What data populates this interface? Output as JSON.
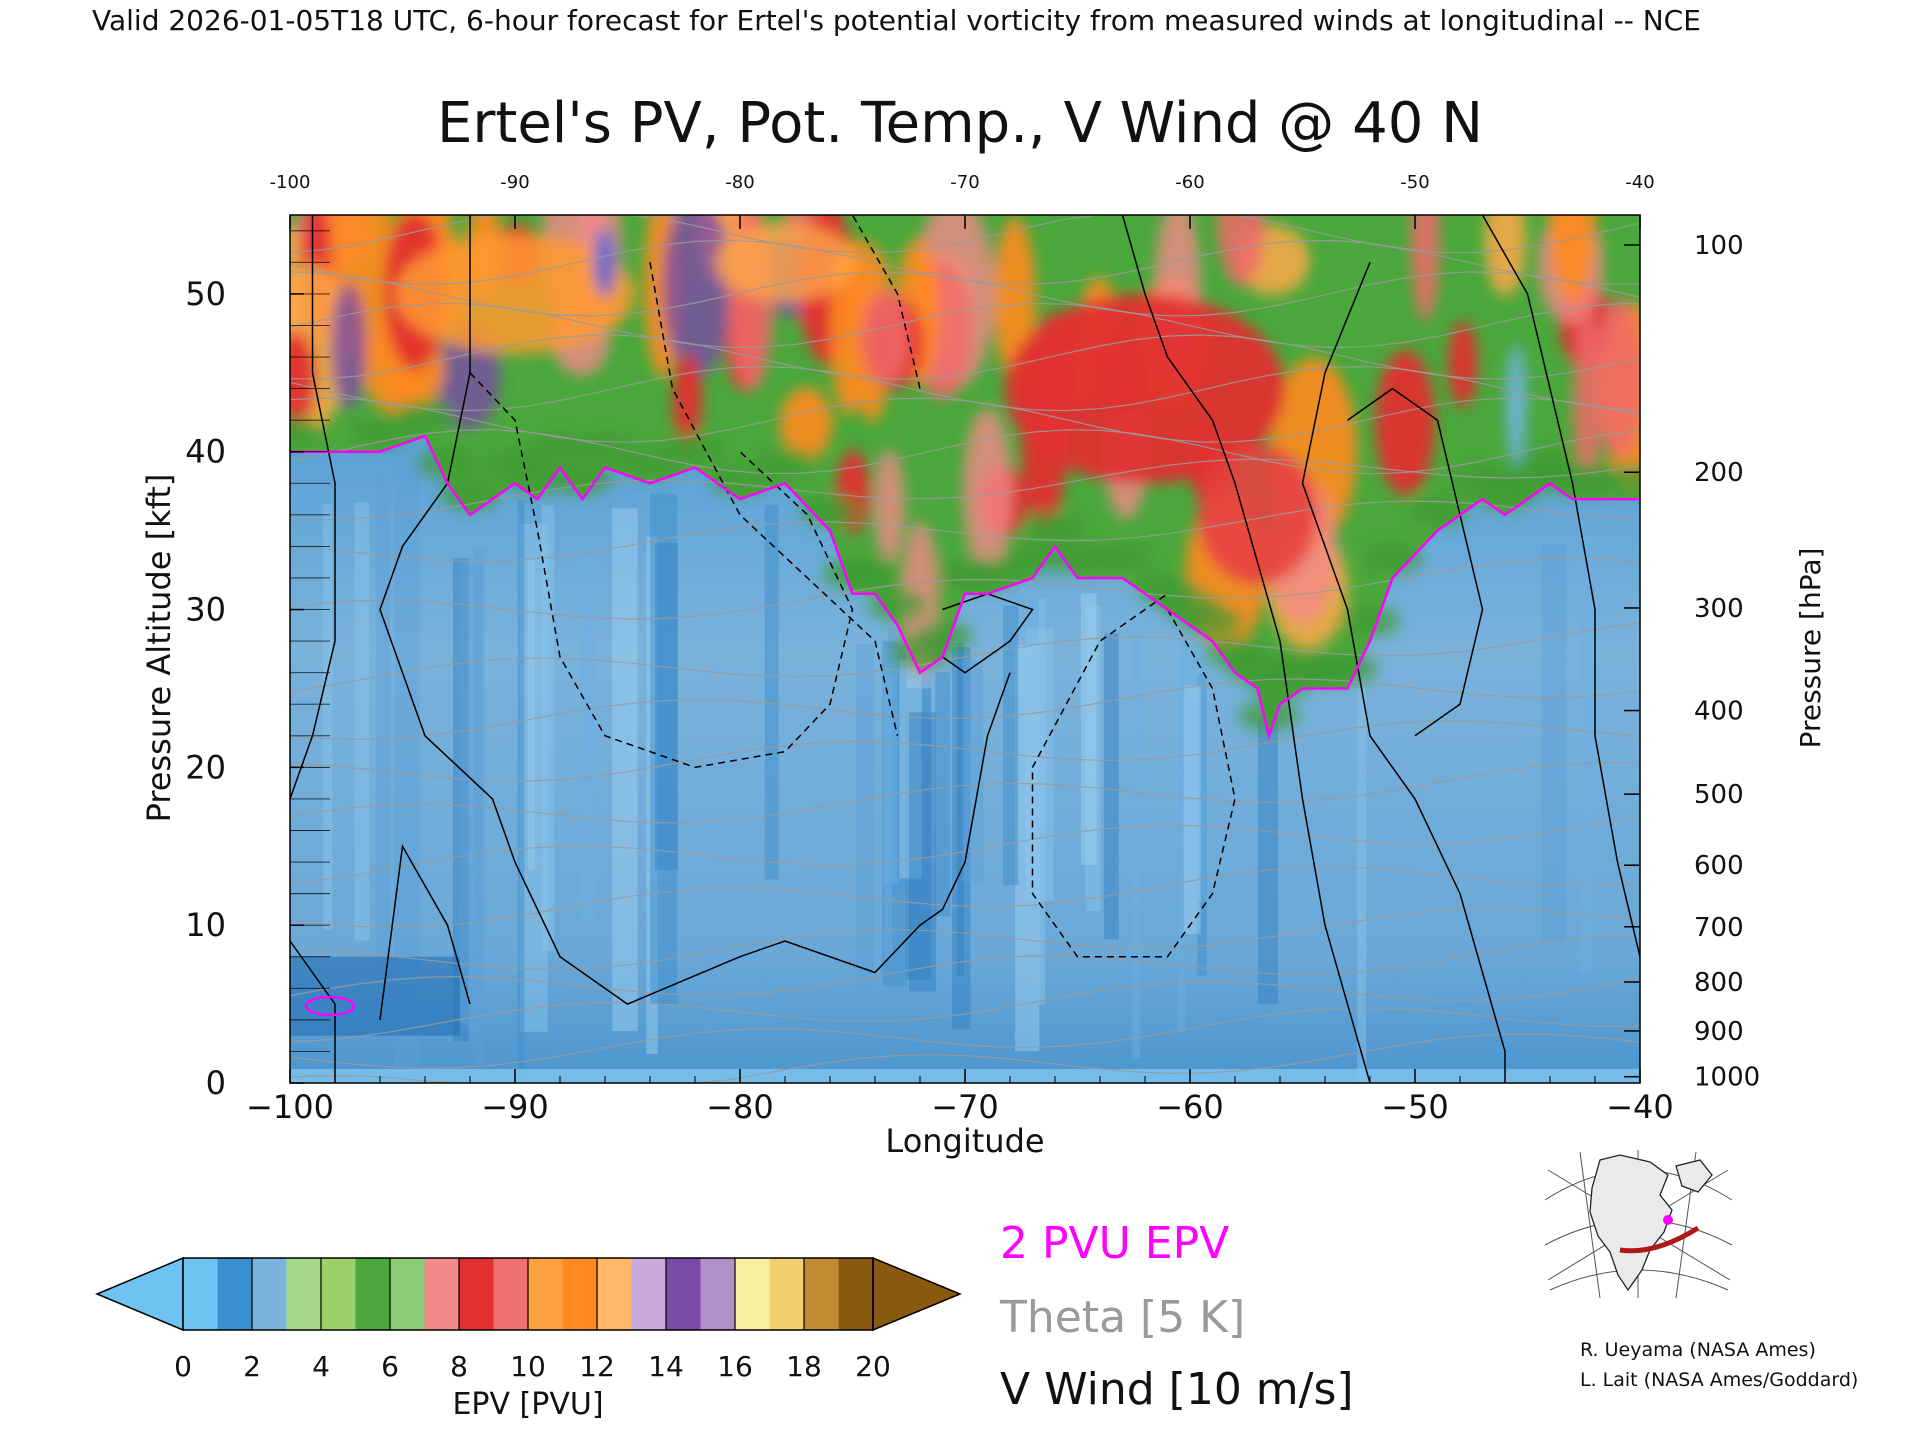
{
  "header": {
    "banner": "Valid 2026-01-05T18 UTC, 6-hour forecast for Ertel's potential vorticity from measured winds at longitudinal -- NCE"
  },
  "legend": {
    "pv_line": "2 PVU EPV",
    "theta_line": "Theta [5 K]",
    "wind_line": "V Wind [10 m/s]",
    "colorbar_label": "EPV [PVU]"
  },
  "credits": {
    "line1": "R. Ueyama (NASA Ames)",
    "line2": "L. Lait (NASA Ames/Goddard)"
  },
  "colors": {
    "pv_contour": "#ff00ff",
    "theta_contour": "#9a9a9a",
    "wind_contour": "#000000",
    "colorbar": [
      "#6fc3f2",
      "#3a8fd0",
      "#7ab4dc",
      "#a6d98a",
      "#9dd06a",
      "#4aa83c",
      "#8ccc76",
      "#f28a8a",
      "#e23030",
      "#f07070",
      "#ffa040",
      "#ff8a20",
      "#ffb866",
      "#c8a8d8",
      "#7a4aa8",
      "#b090c8",
      "#f8f0a0",
      "#f2d070",
      "#c08a30",
      "#8a5a10"
    ]
  },
  "chart_data": {
    "type": "heatmap",
    "title": "Ertel's PV, Pot. Temp., V Wind @ 40 N",
    "xlabel": "Longitude",
    "ylabel": "Pressure Altitude [kft]",
    "y2label": "Pressure [hPa]",
    "xlim": [
      -100,
      -40
    ],
    "ylim": [
      0,
      55
    ],
    "x_ticks": [
      -100,
      -90,
      -80,
      -70,
      -60,
      -50,
      -40
    ],
    "x_tick_labels": [
      "−100",
      "−90",
      "−80",
      "−70",
      "−60",
      "−50",
      "−40"
    ],
    "top_tick_labels": [
      "-100",
      "-90",
      "-80",
      "-70",
      "-60",
      "-50",
      "-40"
    ],
    "y_ticks": [
      0,
      10,
      20,
      30,
      40,
      50
    ],
    "y_tick_labels": [
      "0",
      "10",
      "20",
      "30",
      "40",
      "50"
    ],
    "pressure_ticks": [
      {
        "hPa": 100,
        "kft": 53.1,
        "label": "100"
      },
      {
        "hPa": 200,
        "kft": 38.7,
        "label": "200"
      },
      {
        "hPa": 300,
        "kft": 30.1,
        "label": "300"
      },
      {
        "hPa": 400,
        "kft": 23.6,
        "label": "400"
      },
      {
        "hPa": 500,
        "kft": 18.3,
        "label": "500"
      },
      {
        "hPa": 600,
        "kft": 13.8,
        "label": "600"
      },
      {
        "hPa": 700,
        "kft": 9.9,
        "label": "700"
      },
      {
        "hPa": 800,
        "kft": 6.4,
        "label": "800"
      },
      {
        "hPa": 900,
        "kft": 3.3,
        "label": "900"
      },
      {
        "hPa": 1000,
        "kft": 0.4,
        "label": "1000"
      }
    ],
    "tropopause_2pvu": {
      "lon": [
        -100,
        -96,
        -94,
        -93,
        -92,
        -90,
        -89,
        -88,
        -87,
        -86,
        -84,
        -82,
        -80,
        -78,
        -76,
        -75,
        -74,
        -73,
        -72,
        -71,
        -70,
        -69,
        -67,
        -66,
        -65,
        -63,
        -61,
        -60,
        -59,
        -58,
        -57,
        -56.5,
        -56,
        -55,
        -54,
        -53,
        -52,
        -51,
        -49,
        -47,
        -46,
        -45,
        -44,
        -43,
        -42,
        -40
      ],
      "kft": [
        40,
        40,
        41,
        38,
        36,
        38,
        37,
        39,
        37,
        39,
        38,
        39,
        37,
        38,
        35,
        31,
        31,
        29,
        26,
        27,
        31,
        31,
        32,
        34,
        32,
        32,
        30,
        29,
        28,
        26,
        25,
        22,
        24,
        25,
        25,
        25,
        28,
        32,
        35,
        37,
        36,
        37,
        38,
        37,
        37,
        37
      ]
    },
    "colorbar": {
      "min": 0,
      "max": 20,
      "step": 1,
      "tick_values": [
        0,
        2,
        4,
        6,
        8,
        10,
        12,
        14,
        16,
        18,
        20
      ],
      "tick_labels": [
        "0",
        "2",
        "4",
        "6",
        "8",
        "10",
        "12",
        "14",
        "16",
        "18",
        "20"
      ]
    }
  }
}
